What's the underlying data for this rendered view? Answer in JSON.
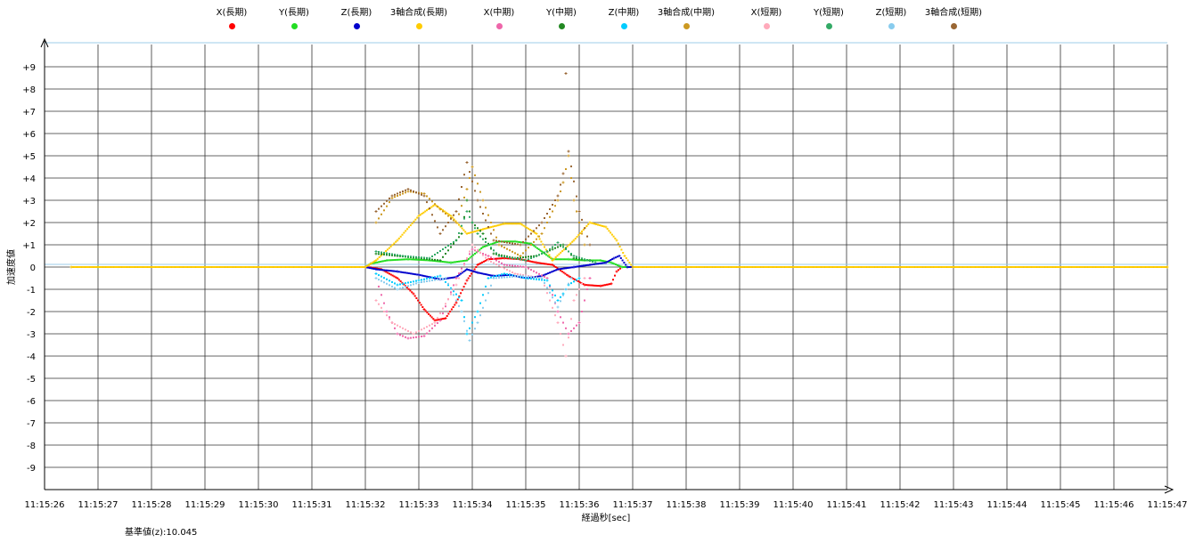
{
  "chart_data": {
    "type": "scatter",
    "xlabel": "経過秒[sec]",
    "ylabel": "加速度値",
    "x_start": "11:15:26",
    "xlim": [
      0,
      21
    ],
    "x_ticks": [
      "11:15:26",
      "11:15:27",
      "11:15:28",
      "11:15:29",
      "11:15:30",
      "11:15:31",
      "11:15:32",
      "11:15:33",
      "11:15:34",
      "11:15:35",
      "11:15:36",
      "11:15:37",
      "11:15:38",
      "11:15:39",
      "11:15:40",
      "11:15:41",
      "11:15:42",
      "11:15:43",
      "11:15:44",
      "11:15:45",
      "11:15:46",
      "11:15:47"
    ],
    "ylim": [
      -10,
      10
    ],
    "y_ticks": [
      "+9",
      "+8",
      "+7",
      "+6",
      "+5",
      "+4",
      "+3",
      "+2",
      "+1",
      "0",
      "-1",
      "-2",
      "-3",
      "-4",
      "-5",
      "-6",
      "-7",
      "-8",
      "-9"
    ],
    "grid": true,
    "legend_position": "top",
    "baseline_label": "基準値(z):10.045",
    "series": [
      {
        "name": "X(長期)",
        "color": "#ff0000",
        "points": [
          [
            1,
            0
          ],
          [
            6,
            0
          ],
          [
            6.1,
            -0.02
          ],
          [
            6.3,
            -0.1
          ],
          [
            6.6,
            -0.5
          ],
          [
            6.9,
            -1.2
          ],
          [
            7.1,
            -1.9
          ],
          [
            7.3,
            -2.4
          ],
          [
            7.5,
            -2.3
          ],
          [
            7.7,
            -1.6
          ],
          [
            7.9,
            -0.6
          ],
          [
            8.1,
            0.1
          ],
          [
            8.3,
            0.35
          ],
          [
            8.6,
            0.4
          ],
          [
            8.9,
            0.35
          ],
          [
            9.2,
            0.2
          ],
          [
            9.5,
            0.1
          ],
          [
            9.8,
            -0.4
          ],
          [
            10.1,
            -0.8
          ],
          [
            10.4,
            -0.85
          ],
          [
            10.6,
            -0.75
          ],
          [
            10.7,
            -0.2
          ],
          [
            10.8,
            0
          ],
          [
            21,
            0
          ]
        ]
      },
      {
        "name": "Y(長期)",
        "color": "#22dd22",
        "points": [
          [
            1,
            0
          ],
          [
            6,
            0
          ],
          [
            6.1,
            0.15
          ],
          [
            6.4,
            0.3
          ],
          [
            6.8,
            0.35
          ],
          [
            7.2,
            0.3
          ],
          [
            7.6,
            0.2
          ],
          [
            7.9,
            0.3
          ],
          [
            8.2,
            0.9
          ],
          [
            8.5,
            1.15
          ],
          [
            8.8,
            1.15
          ],
          [
            9.1,
            1.05
          ],
          [
            9.3,
            0.7
          ],
          [
            9.5,
            0.35
          ],
          [
            9.8,
            0.35
          ],
          [
            10.1,
            0.3
          ],
          [
            10.4,
            0.3
          ],
          [
            10.6,
            0.2
          ],
          [
            10.8,
            0
          ],
          [
            21,
            0
          ]
        ]
      },
      {
        "name": "Z(長期)",
        "color": "#0000cc",
        "points": [
          [
            0.5,
            0
          ],
          [
            6,
            0
          ],
          [
            6.2,
            -0.1
          ],
          [
            6.6,
            -0.2
          ],
          [
            7,
            -0.35
          ],
          [
            7.4,
            -0.55
          ],
          [
            7.7,
            -0.45
          ],
          [
            7.9,
            -0.1
          ],
          [
            8.1,
            -0.25
          ],
          [
            8.4,
            -0.4
          ],
          [
            8.7,
            -0.35
          ],
          [
            9,
            -0.5
          ],
          [
            9.3,
            -0.4
          ],
          [
            9.6,
            -0.1
          ],
          [
            9.9,
            0
          ],
          [
            10.2,
            0.1
          ],
          [
            10.5,
            0.2
          ],
          [
            10.65,
            0.4
          ],
          [
            10.75,
            0.5
          ],
          [
            10.9,
            0
          ],
          [
            21,
            0
          ]
        ]
      },
      {
        "name": "3軸合成(長期)",
        "color": "#ffcc00",
        "points": [
          [
            0.5,
            0
          ],
          [
            6,
            0
          ],
          [
            6.2,
            0.3
          ],
          [
            6.6,
            1.2
          ],
          [
            7,
            2.3
          ],
          [
            7.3,
            2.8
          ],
          [
            7.6,
            2.3
          ],
          [
            7.9,
            1.5
          ],
          [
            8.2,
            1.7
          ],
          [
            8.6,
            1.95
          ],
          [
            8.9,
            1.95
          ],
          [
            9.2,
            1.5
          ],
          [
            9.5,
            0.3
          ],
          [
            9.9,
            1.2
          ],
          [
            10.2,
            2
          ],
          [
            10.5,
            1.8
          ],
          [
            10.7,
            1.2
          ],
          [
            10.85,
            0.5
          ],
          [
            11,
            0
          ],
          [
            21,
            0
          ]
        ]
      },
      {
        "name": "X(中期)",
        "color": "#ee66aa",
        "points": [
          [
            6.2,
            -0.5
          ],
          [
            6.4,
            -2
          ],
          [
            6.6,
            -3
          ],
          [
            6.8,
            -3.2
          ],
          [
            7.1,
            -3.1
          ],
          [
            7.4,
            -2.4
          ],
          [
            7.7,
            -0.5
          ],
          [
            8,
            0.8
          ],
          [
            8.3,
            0.5
          ],
          [
            8.6,
            0.1
          ],
          [
            9,
            0
          ],
          [
            9.4,
            -0.5
          ],
          [
            9.6,
            -2
          ],
          [
            9.8,
            -3
          ],
          [
            10,
            -2.5
          ],
          [
            10.2,
            -0.5
          ]
        ]
      },
      {
        "name": "Y(中期)",
        "color": "#228822",
        "points": [
          [
            6.2,
            0.6
          ],
          [
            6.6,
            0.5
          ],
          [
            7,
            0.4
          ],
          [
            7.4,
            0.3
          ],
          [
            7.8,
            1.5
          ],
          [
            7.9,
            3
          ],
          [
            8,
            2
          ],
          [
            8.2,
            1.5
          ],
          [
            8.4,
            0.6
          ],
          [
            8.8,
            0.4
          ],
          [
            9.2,
            0.5
          ],
          [
            9.5,
            0.8
          ],
          [
            9.7,
            1
          ],
          [
            9.9,
            0.4
          ],
          [
            10.2,
            0.3
          ]
        ]
      },
      {
        "name": "Z(中期)",
        "color": "#00ccff",
        "points": [
          [
            6.2,
            -0.3
          ],
          [
            6.6,
            -0.8
          ],
          [
            7,
            -0.6
          ],
          [
            7.4,
            -0.4
          ],
          [
            7.8,
            -1.5
          ],
          [
            7.9,
            -3
          ],
          [
            8.1,
            -2
          ],
          [
            8.3,
            -0.5
          ],
          [
            8.6,
            -0.3
          ],
          [
            9,
            -0.5
          ],
          [
            9.4,
            -0.6
          ],
          [
            9.6,
            -1.5
          ],
          [
            9.7,
            -1.2
          ],
          [
            9.8,
            -0.8
          ],
          [
            10,
            -0.5
          ]
        ]
      },
      {
        "name": "3軸合成(中期)",
        "color": "#cc9922",
        "points": [
          [
            6.2,
            2
          ],
          [
            6.5,
            3.1
          ],
          [
            6.8,
            3.4
          ],
          [
            7.1,
            3.3
          ],
          [
            7.4,
            2.6
          ],
          [
            7.7,
            2
          ],
          [
            7.9,
            3.5
          ],
          [
            8,
            4.5
          ],
          [
            8.2,
            3
          ],
          [
            8.5,
            1
          ],
          [
            8.9,
            0.5
          ],
          [
            9.3,
            1.5
          ],
          [
            9.6,
            3
          ],
          [
            9.7,
            3.8
          ],
          [
            9.8,
            5
          ],
          [
            9.9,
            3
          ],
          [
            10.1,
            1
          ]
        ]
      },
      {
        "name": "X(短期)",
        "color": "#ffaabb",
        "points": [
          [
            6.2,
            -1.5
          ],
          [
            6.5,
            -2.5
          ],
          [
            6.9,
            -3
          ],
          [
            7.3,
            -2.5
          ],
          [
            7.7,
            -0.8
          ],
          [
            8,
            1
          ],
          [
            8.3,
            0.3
          ],
          [
            8.8,
            -0.3
          ],
          [
            9.3,
            -0.5
          ],
          [
            9.6,
            -2.5
          ],
          [
            9.75,
            -4
          ],
          [
            9.9,
            -1.5
          ],
          [
            10.1,
            -0.5
          ]
        ]
      },
      {
        "name": "Y(短期)",
        "color": "#33aa66",
        "points": [
          [
            6.2,
            0.7
          ],
          [
            6.7,
            0.5
          ],
          [
            7.2,
            0.4
          ],
          [
            7.7,
            1.2
          ],
          [
            7.9,
            2.5
          ],
          [
            8.1,
            1.5
          ],
          [
            8.5,
            0.5
          ],
          [
            9,
            0.3
          ],
          [
            9.4,
            0.7
          ],
          [
            9.6,
            1.1
          ],
          [
            9.9,
            0.5
          ],
          [
            10.3,
            0.2
          ]
        ]
      },
      {
        "name": "Z(短期)",
        "color": "#88ccee",
        "points": [
          [
            6.2,
            -0.5
          ],
          [
            6.6,
            -1
          ],
          [
            7,
            -0.7
          ],
          [
            7.5,
            -0.5
          ],
          [
            7.8,
            -2
          ],
          [
            7.95,
            -3.3
          ],
          [
            8.1,
            -2.5
          ],
          [
            8.4,
            -0.5
          ],
          [
            8.9,
            -0.4
          ],
          [
            9.3,
            -0.5
          ],
          [
            9.6,
            -1.8
          ],
          [
            9.75,
            -1
          ],
          [
            9.85,
            -0.5
          ]
        ]
      },
      {
        "name": "3軸合成(短期)",
        "color": "#996633",
        "points": [
          [
            6.2,
            2.5
          ],
          [
            6.5,
            3.2
          ],
          [
            6.8,
            3.5
          ],
          [
            7.1,
            3.2
          ],
          [
            7.4,
            1.5
          ],
          [
            7.7,
            2.5
          ],
          [
            7.9,
            4.7
          ],
          [
            8.1,
            3
          ],
          [
            8.4,
            1.2
          ],
          [
            8.9,
            1
          ],
          [
            9.3,
            2
          ],
          [
            9.6,
            3.2
          ],
          [
            9.7,
            4.2
          ],
          [
            9.75,
            8.7
          ],
          [
            9.8,
            5.2
          ],
          [
            10,
            2.5
          ],
          [
            10.2,
            1
          ]
        ]
      }
    ]
  }
}
